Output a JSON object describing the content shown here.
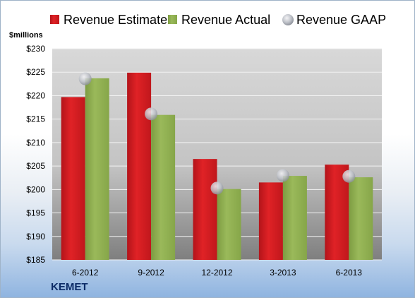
{
  "company": "KEMET",
  "colors": {
    "estimate": "#d01c1f",
    "actual": "#8fb050",
    "gaap": "#c4c7cf"
  },
  "chart_data": {
    "type": "bar",
    "ylabel": "$millions",
    "ylim": [
      185,
      230
    ],
    "yticks": [
      185,
      190,
      195,
      200,
      205,
      210,
      215,
      220,
      225,
      230
    ],
    "ytick_labels": [
      "$185",
      "$190",
      "$195",
      "$200",
      "$205",
      "$210",
      "$215",
      "$220",
      "$225",
      "$230"
    ],
    "categories": [
      "6-2012",
      "9-2012",
      "12-2012",
      "3-2013",
      "6-2013"
    ],
    "grid": true,
    "legend": "top",
    "series": [
      {
        "name": "Revenue Estimate",
        "type": "bar",
        "values": [
          219.7,
          224.9,
          206.5,
          201.5,
          205.3
        ]
      },
      {
        "name": "Revenue Actual",
        "type": "bar",
        "values": [
          223.7,
          215.9,
          200.1,
          202.9,
          202.6
        ]
      },
      {
        "name": "Revenue GAAP",
        "type": "scatter",
        "values": [
          223.6,
          216.1,
          200.3,
          203.0,
          202.8
        ]
      }
    ]
  }
}
